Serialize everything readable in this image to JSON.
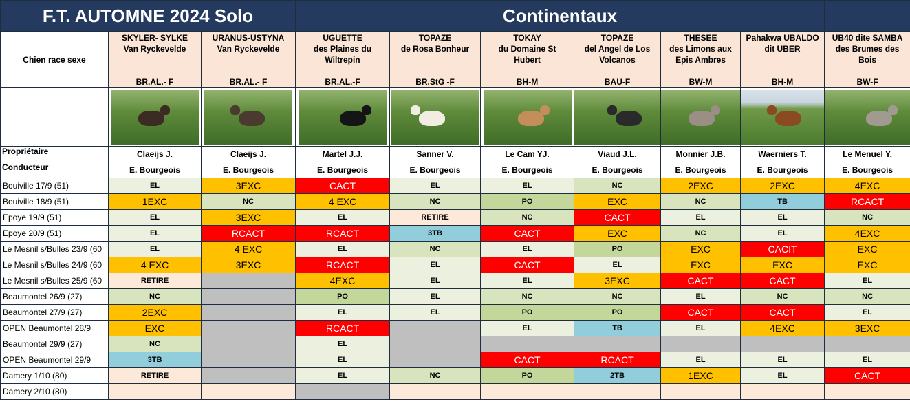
{
  "header": {
    "title": "F.T. AUTOMNE 2024 Solo",
    "category": "Continentaux",
    "dog_label": "Chien race sexe",
    "owner_label": "Propriétaire",
    "handler_label": "Conducteur"
  },
  "dogs": [
    {
      "l1": "SKYLER- SYLKE",
      "l2": "Van Ryckevelde",
      "l3": "",
      "breed": "BR.AL.- F",
      "owner": "Claeijs J.",
      "handler": "E. Bourgeois"
    },
    {
      "l1": "URANUS-USTYNA",
      "l2": "Van Ryckevelde",
      "l3": "",
      "breed": "BR.AL.- F",
      "owner": "Claeijs J.",
      "handler": "E. Bourgeois"
    },
    {
      "l1": "UGUETTE",
      "l2": "des Plaines du",
      "l3": "Wiltrepin",
      "breed": "BR.AL.-F",
      "owner": "Martel J.J.",
      "handler": "E. Bourgeois"
    },
    {
      "l1": "TOPAZE",
      "l2": "de Rosa Bonheur",
      "l3": "",
      "breed": "BR.StG -F",
      "owner": "Sanner V.",
      "handler": "E. Bourgeois"
    },
    {
      "l1": "TOKAY",
      "l2": "du Domaine St",
      "l3": "Hubert",
      "breed": "BH-M",
      "owner": "Le Cam YJ.",
      "handler": "E. Bourgeois"
    },
    {
      "l1": "TOPAZE",
      "l2": "del Angel de  Los",
      "l3": "Volcanos",
      "breed": "BAU-F",
      "owner": "Viaud J.L.",
      "handler": "E. Bourgeois"
    },
    {
      "l1": "THESEE",
      "l2": "des Limons aux",
      "l3": "Epis Ambres",
      "breed": "BW-M",
      "owner": "Monnier J.B.",
      "handler": "E. Bourgeois"
    },
    {
      "l1": "Pahakwa UBALDO",
      "l2": "dit UBER",
      "l3": "",
      "breed": "BH-M",
      "owner": "Waerniers T.",
      "handler": "E. Bourgeois"
    },
    {
      "l1": "UB40 dite SAMBA",
      "l2": "des Brumes des",
      "l3": "Bois",
      "breed": "BW-F",
      "owner": "Le Menuel Y.",
      "handler": "E. Bourgeois"
    }
  ],
  "events": [
    "Bouiville 17/9  (51)",
    "Bouiville 18/9  (51)",
    "Epoye 19/9  (51)",
    "Epoye  20/9 (51)",
    "Le Mesnil s/Bulles 23/9 (60",
    "Le Mesnil s/Bulles 24/9 (60",
    "Le Mesnil s/Bulles 25/9 (60",
    "Beaumontel 26/9 (27)",
    "Beaumontel 27/9 (27)",
    "OPEN Beaumontel 28/9",
    "Beaumontel 29/9 (27)",
    "OPEN Beaumontel 29/9",
    "Damery 1/10 (80)",
    "Damery 2/10 (80)"
  ],
  "results": [
    [
      "EL",
      "3EXC",
      "CACT",
      "EL",
      "EL",
      "NC",
      "2EXC",
      "2EXC",
      "4EXC"
    ],
    [
      "1EXC",
      "NC",
      "4 EXC",
      "NC",
      "PO",
      "EXC",
      "NC",
      "TB",
      "RCACT"
    ],
    [
      "EL",
      "3EXC",
      "EL",
      "RETIRE",
      "NC",
      "CACT",
      "EL",
      "EL",
      "NC"
    ],
    [
      "EL",
      "RCACT",
      "RCACT",
      "3TB",
      "CACT",
      "EXC",
      "NC",
      "EL",
      "4EXC"
    ],
    [
      "EL",
      "4 EXC",
      "EL",
      "NC",
      "EL",
      "PO",
      "EXC",
      "CACIT",
      "EXC"
    ],
    [
      "4 EXC",
      "3EXC",
      "RCACT",
      "EL",
      "CACT",
      "EL",
      "EXC",
      "EXC",
      "EXC"
    ],
    [
      "RETIRE",
      "",
      "4EXC",
      "EL",
      "EL",
      "3EXC",
      "CACT",
      "CACT",
      "EL"
    ],
    [
      "NC",
      "",
      "PO",
      "EL",
      "NC",
      "NC",
      "EL",
      "NC",
      "NC"
    ],
    [
      "2EXC",
      "",
      "EL",
      "EL",
      "PO",
      "PO",
      "CACT",
      "CACT",
      "EL"
    ],
    [
      "EXC",
      "",
      "RCACT",
      "",
      "EL",
      "TB",
      "EL",
      "4EXC",
      "3EXC"
    ],
    [
      "NC",
      "",
      "EL",
      "",
      "",
      "",
      "",
      "",
      ""
    ],
    [
      "3TB",
      "",
      "EL",
      "",
      "CACT",
      "RCACT",
      "EL",
      "EL",
      "EL"
    ],
    [
      "RETIRE",
      "",
      "EL",
      "NC",
      "PO",
      "2TB",
      "1EXC",
      "EL",
      "CACT"
    ],
    [
      "",
      "",
      "",
      "",
      "",
      "",
      "",
      "",
      ""
    ]
  ],
  "colors": {
    "title_bg": "#243a5e",
    "name_bg": "#fbe5d6",
    "exc": "#ffc000",
    "cact": "#ff0000",
    "el": "#ebf1de",
    "po": "#c4d79b",
    "tb": "#92cddc",
    "retire": "#fde9d9",
    "none": "#bfbfbf"
  },
  "photos": [
    {
      "icon": "dog-photo",
      "dog": "#3b2b22",
      "sky": false
    },
    {
      "icon": "dog-photo",
      "dog": "#4a3a30",
      "sky": false
    },
    {
      "icon": "dog-photo",
      "dog": "#151515",
      "sky": false
    },
    {
      "icon": "dog-photo",
      "dog": "#f2ede2",
      "sky": false
    },
    {
      "icon": "dog-photo",
      "dog": "#c38e5a",
      "sky": false
    },
    {
      "icon": "dog-photo",
      "dog": "#2a2a2a",
      "sky": false
    },
    {
      "icon": "dog-photo",
      "dog": "#9a8e85",
      "sky": false
    },
    {
      "icon": "dog-photo",
      "dog": "#8a4a22",
      "sky": true
    },
    {
      "icon": "dog-photo",
      "dog": "#a09a90",
      "sky": false
    }
  ]
}
